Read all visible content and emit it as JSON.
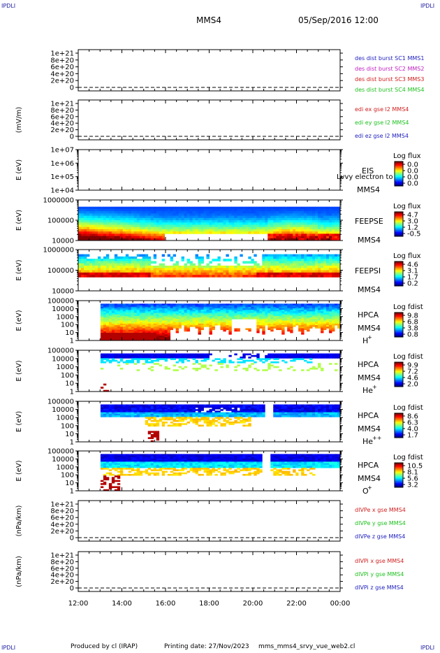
{
  "corner_label": "IPDLI",
  "header": {
    "spacecraft": "MMS4",
    "date": "05/Sep/2016 12:00"
  },
  "footer": {
    "produced_by": "Produced by cl (IRAP)",
    "printing_date": "Printing date: 27/Nov/2023",
    "script_name": "mms_mms4_srvy_vue_web2.cl"
  },
  "chart_data": {
    "type": "heatmap",
    "x_ticks": [
      "12:00",
      "14:00",
      "16:00",
      "18:00",
      "20:00",
      "22:00",
      "00:00"
    ],
    "x_range_hours": [
      12,
      24
    ],
    "panels": [
      {
        "id": "p1",
        "kind": "line",
        "ylabel": "",
        "yticks": [
          "1e+21",
          "8e+20",
          "6e+20",
          "4e+20",
          "2e+20",
          "0"
        ],
        "legend": [
          {
            "text": "des dist burst SC1 MMS1",
            "color": "#2020c0"
          },
          {
            "text": "des dist burst SC2 MMS2",
            "color": "#c020c0"
          },
          {
            "text": "des dist burst SC3 MMS3",
            "color": "#d02020"
          },
          {
            "text": "des dist burst SC4 MMS4",
            "color": "#20c020"
          }
        ]
      },
      {
        "id": "p2",
        "kind": "line",
        "ylabel": "(mV/m)",
        "yticks": [
          "1e+21",
          "8e+20",
          "6e+20",
          "4e+20",
          "2e+20",
          "0"
        ],
        "legend": [
          {
            "text": "edi ex gse l2 MMS4",
            "color": "#d02020"
          },
          {
            "text": "edi ey gse l2 MMS4",
            "color": "#20c020"
          },
          {
            "text": "edi ez gse l2 MMS4",
            "color": "#2020c0"
          }
        ]
      },
      {
        "id": "p3",
        "kind": "spectro_empty",
        "ylabel": "E (eV)",
        "yticks": [
          "1e+07",
          "1e+06",
          "1e+05",
          "1e+04"
        ],
        "instrument": "EIS",
        "spacecraft": "MMS4",
        "overlay": "Lvvy electron to",
        "cbar_title": "Log flux",
        "cbar_ticks": [
          "0.0",
          "0.0",
          "0.0",
          "0.0"
        ]
      },
      {
        "id": "p4",
        "kind": "spectro",
        "pattern": "feepse",
        "ylabel": "E (eV)",
        "yticks": [
          "1000000",
          "100000",
          "10000"
        ],
        "instrument": "FEEPSE",
        "spacecraft": "MMS4",
        "cbar_title": "Log flux",
        "cbar_ticks": [
          "4.7",
          "3.0",
          "1.2",
          "-0.5"
        ]
      },
      {
        "id": "p5",
        "kind": "spectro",
        "pattern": "feepsi",
        "ylabel": "E (eV)",
        "yticks": [
          "1000000",
          "100000",
          "10000"
        ],
        "instrument": "FEEPSI",
        "spacecraft": "MMS4",
        "cbar_title": "Log flux",
        "cbar_ticks": [
          "4.6",
          "3.1",
          "1.7",
          "0.2"
        ]
      },
      {
        "id": "p6",
        "kind": "spectro",
        "pattern": "hplus",
        "ylabel": "E (eV)",
        "yticks": [
          "100000",
          "10000",
          "1000",
          "100",
          "10",
          "1"
        ],
        "instrument": "HPCA",
        "spacecraft": "MMS4",
        "species": "H",
        "species_sup": "+",
        "cbar_title": "Log fdist",
        "cbar_ticks": [
          "9.8",
          "6.8",
          "3.8",
          "0.8"
        ]
      },
      {
        "id": "p7",
        "kind": "spectro",
        "pattern": "heplus",
        "ylabel": "E (eV)",
        "yticks": [
          "100000",
          "10000",
          "1000",
          "100",
          "10",
          "1"
        ],
        "instrument": "HPCA",
        "spacecraft": "MMS4",
        "species": "He",
        "species_sup": "+",
        "cbar_title": "Log fdist",
        "cbar_ticks": [
          "9.9",
          "7.2",
          "4.6",
          "2.0"
        ]
      },
      {
        "id": "p8",
        "kind": "spectro",
        "pattern": "heplusplus",
        "ylabel": "E (eV)",
        "yticks": [
          "100000",
          "10000",
          "1000",
          "100",
          "10",
          "1"
        ],
        "instrument": "HPCA",
        "spacecraft": "MMS4",
        "species": "He",
        "species_sup": "++",
        "cbar_title": "Log fdist",
        "cbar_ticks": [
          "8.6",
          "6.3",
          "4.0",
          "1.7"
        ]
      },
      {
        "id": "p9",
        "kind": "spectro",
        "pattern": "oplus",
        "ylabel": "E (eV)",
        "yticks": [
          "100000",
          "10000",
          "1000",
          "100",
          "10",
          "1"
        ],
        "instrument": "HPCA",
        "spacecraft": "MMS4",
        "species": "O",
        "species_sup": "+",
        "cbar_title": "Log fdist",
        "cbar_ticks": [
          "10.5",
          "8.1",
          "5.6",
          "3.2"
        ]
      },
      {
        "id": "p10",
        "kind": "line",
        "ylabel": "(nPa/km)",
        "yticks": [
          "1e+21",
          "8e+20",
          "6e+20",
          "4e+20",
          "2e+20",
          "0"
        ],
        "legend": [
          {
            "text": "dIVPe x gse MMS4",
            "color": "#d02020"
          },
          {
            "text": "dIVPe y gse MMS4",
            "color": "#20c020"
          },
          {
            "text": "dIVPe z gse MMS4",
            "color": "#2020c0"
          }
        ]
      },
      {
        "id": "p11",
        "kind": "line",
        "ylabel": "(nPa/km)",
        "yticks": [
          "1e+21",
          "8e+20",
          "6e+20",
          "4e+20",
          "2e+20",
          "0"
        ],
        "legend": [
          {
            "text": "dIVPi x gse MMS4",
            "color": "#d02020"
          },
          {
            "text": "dIVPi y gse MMS4",
            "color": "#20c020"
          },
          {
            "text": "dIVPi z gse MMS4",
            "color": "#2020c0"
          }
        ]
      }
    ]
  }
}
